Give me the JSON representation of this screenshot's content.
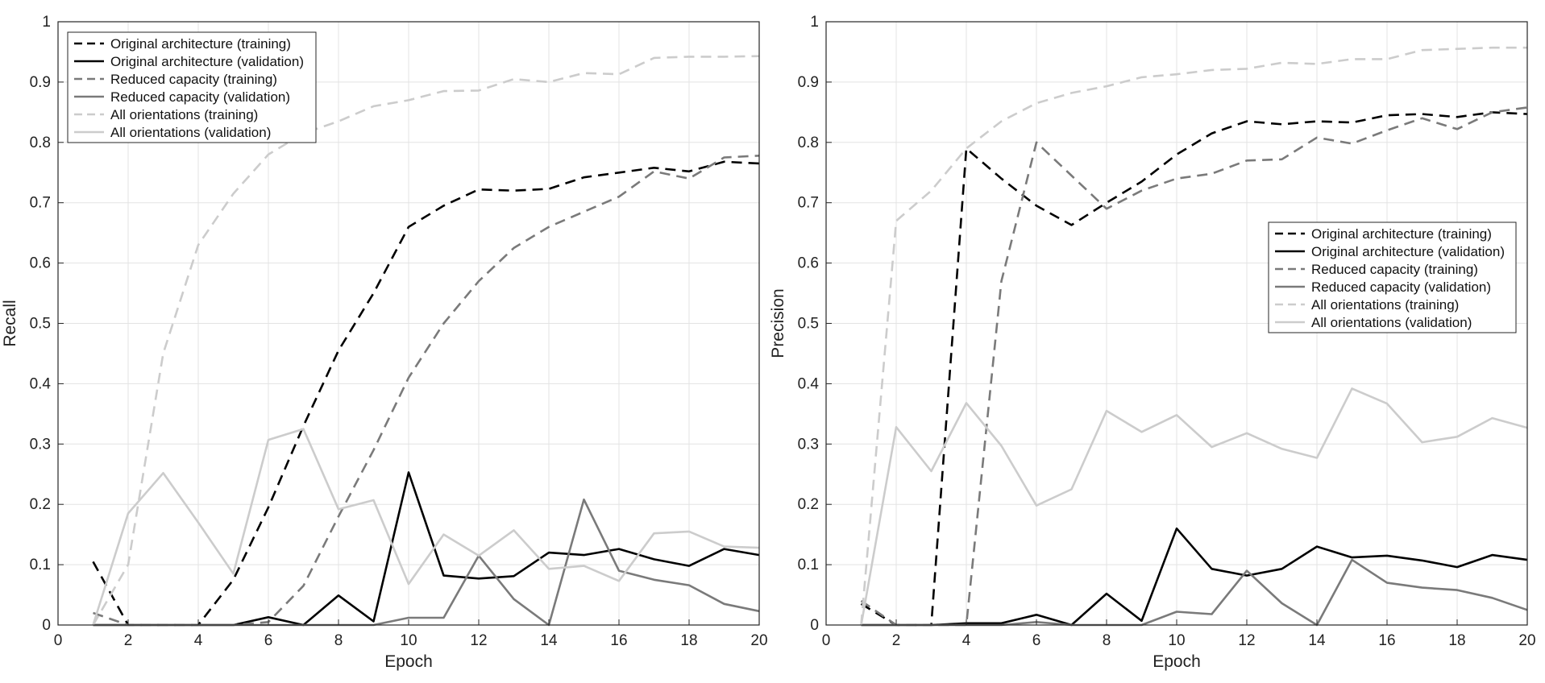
{
  "chart_data": [
    {
      "type": "line",
      "xlabel": "Epoch",
      "ylabel": "Recall",
      "xlim": [
        0,
        20
      ],
      "ylim": [
        0,
        1
      ],
      "xticks": [
        "0",
        "2",
        "4",
        "6",
        "8",
        "10",
        "12",
        "14",
        "16",
        "18",
        "20"
      ],
      "yticks": [
        "0",
        "0.1",
        "0.2",
        "0.3",
        "0.4",
        "0.5",
        "0.6",
        "0.7",
        "0.8",
        "0.9",
        "1"
      ],
      "grid": true,
      "legend_position": "top-left",
      "x": [
        1,
        2,
        3,
        4,
        5,
        6,
        7,
        8,
        9,
        10,
        11,
        12,
        13,
        14,
        15,
        16,
        17,
        18,
        19,
        20
      ],
      "series": [
        {
          "name": "Original architecture (training)",
          "color": "#000000",
          "dash": "dashed",
          "values": [
            0.105,
            0.0,
            0.0,
            0.0,
            0.075,
            0.195,
            0.33,
            0.455,
            0.55,
            0.66,
            0.695,
            0.722,
            0.72,
            0.723,
            0.742,
            0.75,
            0.758,
            0.752,
            0.768,
            0.765
          ]
        },
        {
          "name": "Original architecture (validation)",
          "color": "#000000",
          "dash": "solid",
          "values": [
            0.0,
            0.0,
            0.0,
            0.0,
            0.0,
            0.013,
            0.0,
            0.049,
            0.006,
            0.253,
            0.082,
            0.077,
            0.081,
            0.12,
            0.116,
            0.126,
            0.109,
            0.098,
            0.126,
            0.116
          ]
        },
        {
          "name": "Reduced capacity (training)",
          "color": "#7a7a7a",
          "dash": "dashed",
          "values": [
            0.02,
            0.0,
            0.0,
            0.0,
            0.0,
            0.005,
            0.065,
            0.18,
            0.29,
            0.41,
            0.5,
            0.57,
            0.625,
            0.66,
            0.685,
            0.71,
            0.752,
            0.74,
            0.775,
            0.778
          ]
        },
        {
          "name": "Reduced capacity (validation)",
          "color": "#7a7a7a",
          "dash": "solid",
          "values": [
            0.0,
            0.0,
            0.0,
            0.0,
            0.0,
            0.0,
            0.0,
            0.0,
            0.0,
            0.012,
            0.012,
            0.115,
            0.043,
            0.0,
            0.208,
            0.09,
            0.075,
            0.066,
            0.035,
            0.023
          ]
        },
        {
          "name": "All orientations (training)",
          "color": "#cccccc",
          "dash": "dashed",
          "values": [
            0.0,
            0.1,
            0.45,
            0.63,
            0.715,
            0.78,
            0.815,
            0.835,
            0.86,
            0.87,
            0.885,
            0.886,
            0.905,
            0.9,
            0.915,
            0.913,
            0.94,
            0.942,
            0.942,
            0.943
          ]
        },
        {
          "name": "All orientations (validation)",
          "color": "#cccccc",
          "dash": "solid",
          "values": [
            0.0,
            0.185,
            0.252,
            0.17,
            0.085,
            0.307,
            0.325,
            0.192,
            0.207,
            0.068,
            0.15,
            0.115,
            0.157,
            0.093,
            0.098,
            0.073,
            0.152,
            0.155,
            0.13,
            0.128
          ]
        }
      ]
    },
    {
      "type": "line",
      "xlabel": "Epoch",
      "ylabel": "Precision",
      "xlim": [
        0,
        20
      ],
      "ylim": [
        0,
        1
      ],
      "xticks": [
        "0",
        "2",
        "4",
        "6",
        "8",
        "10",
        "12",
        "14",
        "16",
        "18",
        "20"
      ],
      "yticks": [
        "0",
        "0.1",
        "0.2",
        "0.3",
        "0.4",
        "0.5",
        "0.6",
        "0.7",
        "0.8",
        "0.9",
        "1"
      ],
      "grid": true,
      "legend_position": "right",
      "x": [
        1,
        2,
        3,
        4,
        5,
        6,
        7,
        8,
        9,
        10,
        11,
        12,
        13,
        14,
        15,
        16,
        17,
        18,
        19,
        20
      ],
      "series": [
        {
          "name": "Original architecture (training)",
          "color": "#000000",
          "dash": "dashed",
          "values": [
            0.035,
            0.0,
            0.0,
            0.79,
            0.74,
            0.695,
            0.663,
            0.7,
            0.735,
            0.78,
            0.815,
            0.835,
            0.83,
            0.835,
            0.833,
            0.845,
            0.847,
            0.842,
            0.85,
            0.847
          ]
        },
        {
          "name": "Original architecture (validation)",
          "color": "#000000",
          "dash": "solid",
          "values": [
            0.0,
            0.0,
            0.0,
            0.003,
            0.003,
            0.017,
            0.0,
            0.052,
            0.007,
            0.16,
            0.093,
            0.082,
            0.093,
            0.13,
            0.112,
            0.115,
            0.107,
            0.096,
            0.116,
            0.108
          ]
        },
        {
          "name": "Reduced capacity (training)",
          "color": "#7a7a7a",
          "dash": "dashed",
          "values": [
            0.04,
            0.0,
            0.0,
            0.0,
            0.57,
            0.8,
            0.745,
            0.69,
            0.72,
            0.74,
            0.748,
            0.77,
            0.772,
            0.808,
            0.798,
            0.82,
            0.84,
            0.822,
            0.85,
            0.858
          ]
        },
        {
          "name": "Reduced capacity (validation)",
          "color": "#7a7a7a",
          "dash": "solid",
          "values": [
            0.0,
            0.0,
            0.0,
            0.0,
            0.0,
            0.005,
            0.0,
            0.0,
            0.0,
            0.022,
            0.018,
            0.09,
            0.036,
            0.0,
            0.108,
            0.07,
            0.062,
            0.058,
            0.045,
            0.025
          ]
        },
        {
          "name": "All orientations (training)",
          "color": "#cccccc",
          "dash": "dashed",
          "values": [
            0.0,
            0.67,
            0.72,
            0.79,
            0.835,
            0.865,
            0.882,
            0.893,
            0.908,
            0.913,
            0.92,
            0.922,
            0.932,
            0.93,
            0.938,
            0.938,
            0.953,
            0.955,
            0.957,
            0.957
          ]
        },
        {
          "name": "All orientations (validation)",
          "color": "#cccccc",
          "dash": "solid",
          "values": [
            0.0,
            0.328,
            0.255,
            0.368,
            0.297,
            0.198,
            0.225,
            0.355,
            0.32,
            0.348,
            0.295,
            0.318,
            0.292,
            0.277,
            0.392,
            0.367,
            0.303,
            0.312,
            0.343,
            0.327
          ]
        }
      ]
    }
  ]
}
